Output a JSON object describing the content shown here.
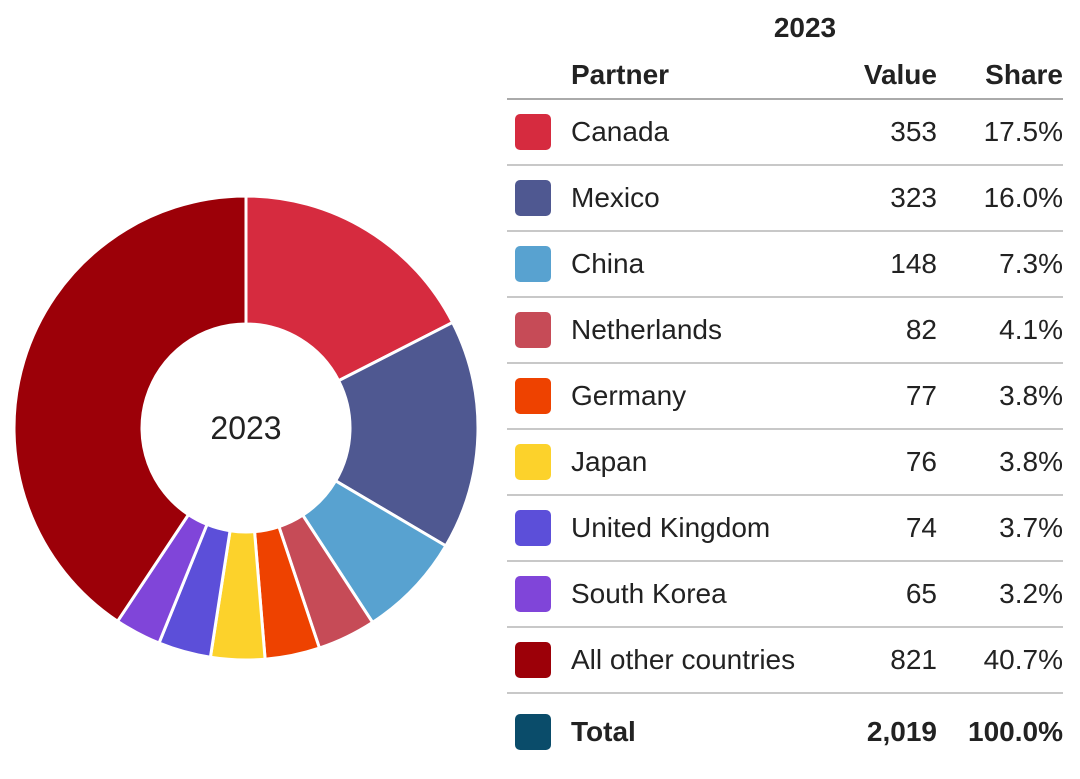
{
  "chart_data": {
    "type": "pie",
    "title": "2023",
    "center_label": "2023",
    "table_headers": {
      "partner": "Partner",
      "value": "Value",
      "share": "Share"
    },
    "slices": [
      {
        "label": "Canada",
        "value": 353,
        "value_text": "353",
        "share": "17.5%",
        "color": "#d62b3f"
      },
      {
        "label": "Mexico",
        "value": 323,
        "value_text": "323",
        "share": "16.0%",
        "color": "#4f5891"
      },
      {
        "label": "China",
        "value": 148,
        "value_text": "148",
        "share": "7.3%",
        "color": "#58a2d0"
      },
      {
        "label": "Netherlands",
        "value": 82,
        "value_text": "82",
        "share": "4.1%",
        "color": "#c64b57"
      },
      {
        "label": "Germany",
        "value": 77,
        "value_text": "77",
        "share": "3.8%",
        "color": "#ee4200"
      },
      {
        "label": "Japan",
        "value": 76,
        "value_text": "76",
        "share": "3.8%",
        "color": "#fcd22b"
      },
      {
        "label": "United Kingdom",
        "value": 74,
        "value_text": "74",
        "share": "3.7%",
        "color": "#5c4fd9"
      },
      {
        "label": "South Korea",
        "value": 65,
        "value_text": "65",
        "share": "3.2%",
        "color": "#8045d9"
      },
      {
        "label": "All other countries",
        "value": 821,
        "value_text": "821",
        "share": "40.7%",
        "color": "#9c0008"
      }
    ],
    "total": {
      "label": "Total",
      "value": 2019,
      "value_text": "2,019",
      "share": "100.0%",
      "color": "#0a4c6a"
    }
  }
}
